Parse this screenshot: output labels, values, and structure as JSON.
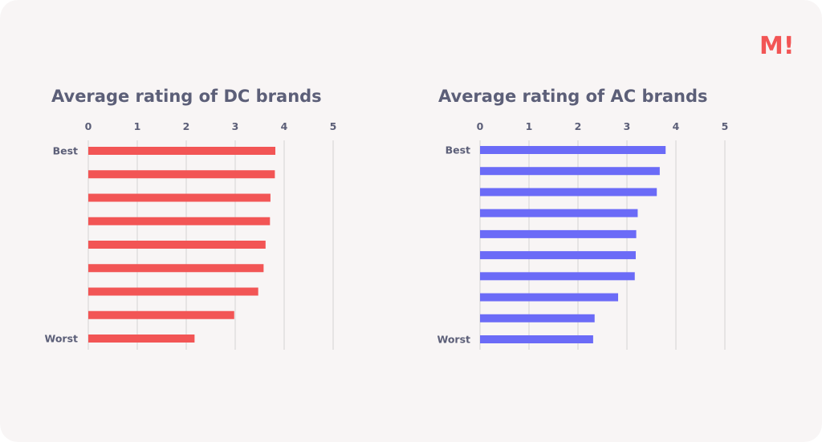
{
  "logo": {
    "text": "M!",
    "color": "#f25555"
  },
  "colors": {
    "background": "#f8f5f5",
    "text": "#5c5f78",
    "grid": "#dcdadb"
  },
  "chart_data": [
    {
      "type": "bar",
      "orientation": "horizontal",
      "title": "Average rating of DC brands",
      "xlim": [
        0,
        5
      ],
      "xticks": [
        0,
        1,
        2,
        3,
        4,
        5
      ],
      "category_labels": [
        "Best",
        "",
        "",
        "",
        "",
        "",
        "",
        "",
        "Worst"
      ],
      "values": [
        3.82,
        3.81,
        3.72,
        3.71,
        3.62,
        3.58,
        3.47,
        2.98,
        2.17
      ],
      "color": "#f25555",
      "grid": true
    },
    {
      "type": "bar",
      "orientation": "horizontal",
      "title": "Average rating of AC brands",
      "xlim": [
        0,
        5
      ],
      "xticks": [
        0,
        1,
        2,
        3,
        4,
        5
      ],
      "category_labels": [
        "Best",
        "",
        "",
        "",
        "",
        "",
        "",
        "",
        "",
        "Worst"
      ],
      "values": [
        3.79,
        3.67,
        3.61,
        3.22,
        3.19,
        3.18,
        3.16,
        2.82,
        2.34,
        2.31
      ],
      "color": "#6b6bf7",
      "grid": true
    }
  ]
}
